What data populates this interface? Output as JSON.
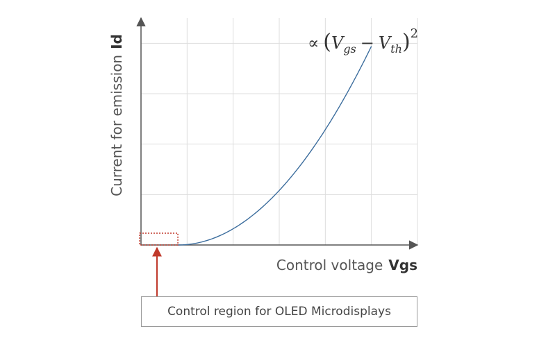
{
  "chart_data": {
    "type": "line",
    "title": "",
    "xlabel": "Control voltage",
    "xlabel_bold": "Vgs",
    "ylabel": "Current for emission",
    "ylabel_bold": "Id",
    "formula": {
      "prefix": "∝",
      "open_paren": "(",
      "v1": "V",
      "v1_sub": "gs",
      "minus": "−",
      "v2": "V",
      "v2_sub": "th",
      "close_paren": ")",
      "exponent": "2"
    },
    "xlim": [
      0,
      6
    ],
    "ylim": [
      0,
      4.5
    ],
    "grid": true,
    "series": [
      {
        "name": "Id",
        "color": "#3d6e9e",
        "relation": "square",
        "threshold": 0.8,
        "x_end": 5.0,
        "y_end": 3.94
      }
    ],
    "highlight_region": {
      "x_range": [
        0,
        0.8
      ],
      "color": "#c0392b"
    }
  },
  "callout": {
    "label": "Control region for OLED Microdisplays",
    "border_color": "#9a9a9a"
  },
  "colors": {
    "axis": "#555555",
    "grid": "#dddddd",
    "curve": "#3d6e9e",
    "highlight": "#c0392b"
  }
}
